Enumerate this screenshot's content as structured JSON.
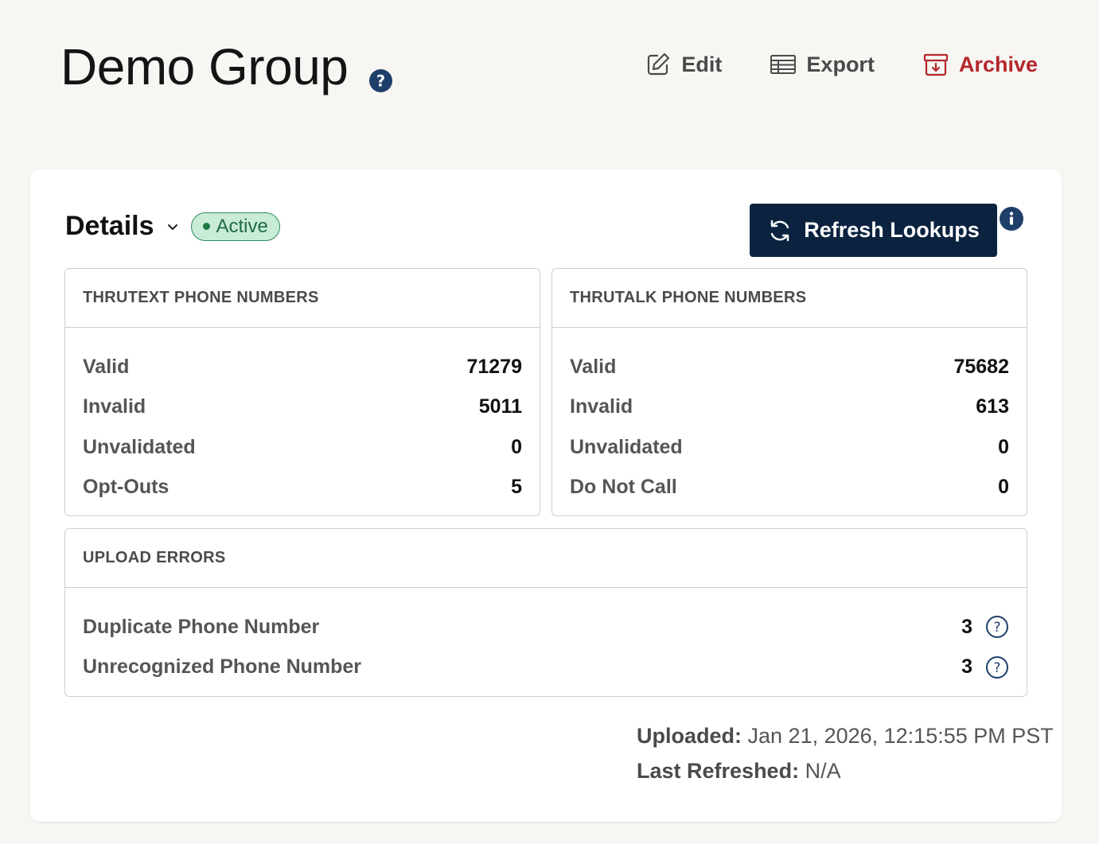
{
  "header": {
    "title": "Demo Group",
    "actions": {
      "edit": "Edit",
      "export": "Export",
      "archive": "Archive"
    }
  },
  "details": {
    "title": "Details",
    "status": "Active",
    "refresh_label": "Refresh Lookups"
  },
  "thrutext": {
    "heading": "THRUTEXT PHONE NUMBERS",
    "rows": [
      {
        "label": "Valid",
        "value": "71279"
      },
      {
        "label": "Invalid",
        "value": "5011"
      },
      {
        "label": "Unvalidated",
        "value": "0"
      },
      {
        "label": "Opt-Outs",
        "value": "5"
      }
    ]
  },
  "thrutalk": {
    "heading": "THRUTALK PHONE NUMBERS",
    "rows": [
      {
        "label": "Valid",
        "value": "75682"
      },
      {
        "label": "Invalid",
        "value": "613"
      },
      {
        "label": "Unvalidated",
        "value": "0"
      },
      {
        "label": "Do Not Call",
        "value": "0"
      }
    ]
  },
  "upload_errors": {
    "heading": "UPLOAD ERRORS",
    "rows": [
      {
        "label": "Duplicate Phone Number",
        "value": "3"
      },
      {
        "label": "Unrecognized Phone Number",
        "value": "3"
      }
    ]
  },
  "meta": {
    "uploaded_label": "Uploaded:",
    "uploaded_value": "Jan 21, 2026, 12:15:55 PM PST",
    "refreshed_label": "Last Refreshed:",
    "refreshed_value": "N/A"
  },
  "colors": {
    "page_bg": "#f7f6f3",
    "primary_button": "#0c2340",
    "danger": "#b5262b",
    "status_bg": "#c9ecd8",
    "status_fg": "#1e6b41",
    "icon_blue": "#1f3f6b"
  },
  "icons": {
    "title_help": "question-circle-filled-icon",
    "edit": "pencil-square-icon",
    "export": "table-icon",
    "archive": "archive-box-icon",
    "refresh": "refresh-arrows-icon",
    "info": "info-circle-filled-icon",
    "error_help": "question-circle-outline-icon"
  }
}
